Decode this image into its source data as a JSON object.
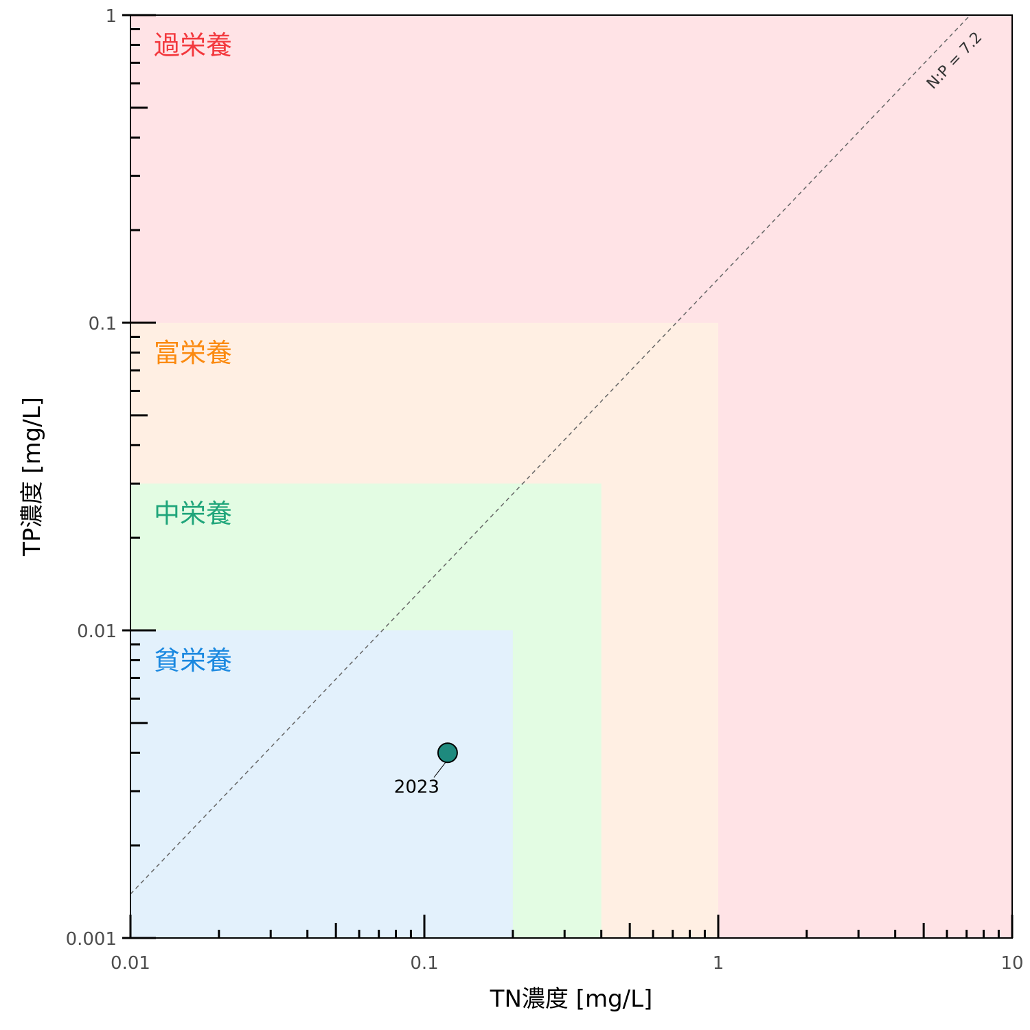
{
  "chart_data": {
    "type": "scatter",
    "title": "",
    "xlabel": "TN濃度 [mg/L]",
    "ylabel": "TP濃度 [mg/L]",
    "x_scale": "log",
    "y_scale": "log",
    "xlim": [
      0.01,
      10
    ],
    "ylim": [
      0.001,
      1
    ],
    "x_ticks": [
      {
        "value": 0.01,
        "label": "0.01"
      },
      {
        "value": 0.1,
        "label": "0.1"
      },
      {
        "value": 1,
        "label": "1"
      },
      {
        "value": 10,
        "label": "10"
      }
    ],
    "y_ticks": [
      {
        "value": 0.001,
        "label": "0.001"
      },
      {
        "value": 0.01,
        "label": "0.01"
      },
      {
        "value": 0.1,
        "label": "0.1"
      },
      {
        "value": 1,
        "label": "1"
      }
    ],
    "grid": false,
    "zones": [
      {
        "label": "過栄養",
        "tn_max": 10,
        "tp_max": 1,
        "fill": "#ffe3e6",
        "text_color": "#f3393e",
        "label_tp": 1
      },
      {
        "label": "富栄養",
        "tn_max": 1,
        "tp_max": 0.1,
        "fill": "#ffefe3",
        "text_color": "#fb8a10",
        "label_tp": 0.1
      },
      {
        "label": "中栄養",
        "tn_max": 0.4,
        "tp_max": 0.03,
        "fill": "#e3fce3",
        "text_color": "#1fa57a",
        "label_tp": 0.03
      },
      {
        "label": "貧栄養",
        "tn_max": 0.2,
        "tp_max": 0.01,
        "fill": "#e3f1fc",
        "text_color": "#1a88e0",
        "label_tp": 0.01
      }
    ],
    "ratio_line": {
      "label": "N:P = 7.2",
      "ratio": 7.2,
      "color": "#666666",
      "style": "dashed"
    },
    "points": [
      {
        "label": "2023",
        "x": 0.12,
        "y": 0.004,
        "fill": "#1e8a7e"
      }
    ]
  }
}
